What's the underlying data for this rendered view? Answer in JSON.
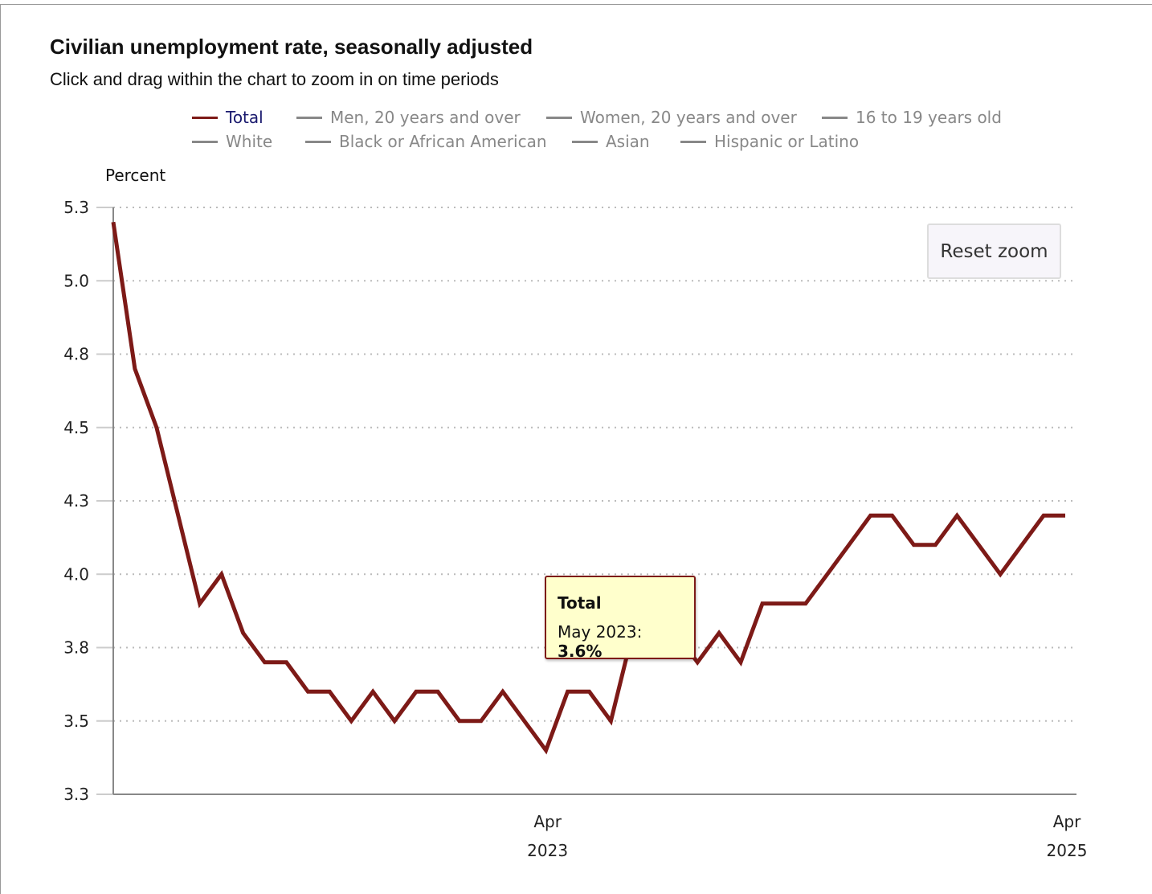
{
  "header": {
    "title": "Civilian unemployment rate, seasonally adjusted",
    "subtitle": "Click and drag within the chart to zoom in on time periods"
  },
  "reset_zoom_label": "Reset zoom",
  "tooltip": {
    "series": "Total",
    "label": "May 2023: ",
    "value": "3.6%"
  },
  "chart_data": {
    "type": "line",
    "title": "Civilian unemployment rate, seasonally adjusted",
    "ylabel": "Percent",
    "ylim": [
      3.25,
      5.25
    ],
    "yticks": [
      5.25,
      5.0,
      4.75,
      4.5,
      4.25,
      4.0,
      3.75,
      3.5,
      3.25
    ],
    "ytick_labels": [
      "5.3",
      "5.0",
      "4.8",
      "4.5",
      "4.3",
      "4.0",
      "3.8",
      "3.5",
      "3.3"
    ],
    "grid": "horizontal dotted",
    "legend_position": "top",
    "xticks": [
      {
        "month": "Apr",
        "year": "2023",
        "index": 20
      },
      {
        "month": "Apr",
        "year": "2025",
        "index": 44
      }
    ],
    "x": [
      "Aug 2021",
      "Sep 2021",
      "Oct 2021",
      "Nov 2021",
      "Dec 2021",
      "Jan 2022",
      "Feb 2022",
      "Mar 2022",
      "Apr 2022",
      "May 2022",
      "Jun 2022",
      "Jul 2022",
      "Aug 2022",
      "Sep 2022",
      "Oct 2022",
      "Nov 2022",
      "Dec 2022",
      "Jan 2023",
      "Feb 2023",
      "Mar 2023",
      "Apr 2023",
      "May 2023",
      "Jun 2023",
      "Jul 2023",
      "Aug 2023",
      "Sep 2023",
      "Oct 2023",
      "Nov 2023",
      "Dec 2023",
      "Jan 2024",
      "Feb 2024",
      "Mar 2024",
      "Apr 2024",
      "May 2024",
      "Jun 2024",
      "Jul 2024",
      "Aug 2024",
      "Sep 2024",
      "Oct 2024",
      "Nov 2024",
      "Dec 2024",
      "Jan 2025",
      "Feb 2025",
      "Mar 2025",
      "Apr 2025"
    ],
    "series": [
      {
        "name": "Total",
        "color": "#7d1a17",
        "visible": true,
        "values": [
          5.2,
          4.7,
          4.5,
          4.2,
          3.9,
          4.0,
          3.8,
          3.7,
          3.7,
          3.6,
          3.6,
          3.5,
          3.6,
          3.5,
          3.6,
          3.6,
          3.5,
          3.5,
          3.6,
          3.5,
          3.4,
          3.6,
          3.6,
          3.5,
          3.8,
          3.8,
          3.8,
          3.7,
          3.8,
          3.7,
          3.9,
          3.9,
          3.9,
          4.0,
          4.1,
          4.2,
          4.2,
          4.1,
          4.1,
          4.2,
          4.1,
          4.0,
          4.1,
          4.2,
          4.2
        ]
      },
      {
        "name": "Men, 20 years and over",
        "color": "#888888",
        "visible": false
      },
      {
        "name": "Women, 20 years and over",
        "color": "#888888",
        "visible": false
      },
      {
        "name": "16 to 19 years old",
        "color": "#888888",
        "visible": false
      },
      {
        "name": "White",
        "color": "#888888",
        "visible": false
      },
      {
        "name": "Black or African American",
        "color": "#888888",
        "visible": false
      },
      {
        "name": "Asian",
        "color": "#888888",
        "visible": false
      },
      {
        "name": "Hispanic or Latino",
        "color": "#888888",
        "visible": false
      }
    ]
  }
}
